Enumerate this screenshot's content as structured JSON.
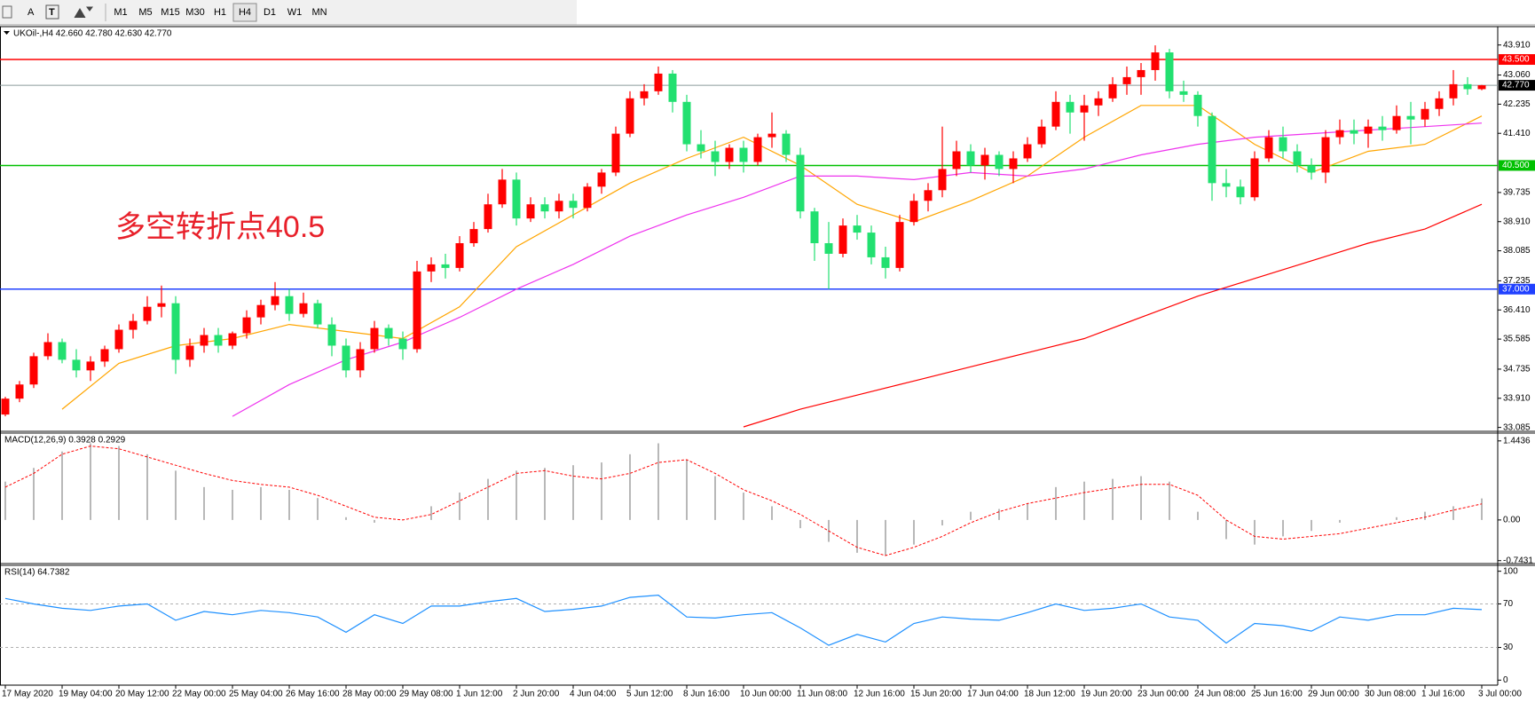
{
  "toolbar": {
    "text_tools": [
      "A"
    ],
    "timeframes": [
      "M1",
      "M5",
      "M15",
      "M30",
      "H1",
      "H4",
      "D1",
      "W1",
      "MN"
    ],
    "active_index": 5
  },
  "chart_data": [
    {
      "type": "candlestick",
      "header": "UKOil-,H4  42.660 42.780 42.630 42.770",
      "annotation": "多空转折点40.5",
      "bull_color": "#ff0000",
      "bear_color": "#22e070",
      "candles": [
        [
          33.45,
          33.95,
          33.4,
          33.9
        ],
        [
          33.9,
          34.4,
          33.8,
          34.3
        ],
        [
          34.3,
          35.2,
          34.2,
          35.1
        ],
        [
          35.1,
          35.75,
          35.0,
          35.5
        ],
        [
          35.5,
          35.6,
          34.9,
          35.0
        ],
        [
          35.0,
          35.3,
          34.5,
          34.7
        ],
        [
          34.7,
          35.1,
          34.4,
          34.95
        ],
        [
          34.95,
          35.4,
          34.8,
          35.3
        ],
        [
          35.3,
          36.0,
          35.2,
          35.85
        ],
        [
          35.85,
          36.3,
          35.6,
          36.1
        ],
        [
          36.1,
          36.8,
          36.0,
          36.5
        ],
        [
          36.5,
          37.1,
          36.2,
          36.6
        ],
        [
          36.6,
          36.8,
          34.6,
          35.0
        ],
        [
          35.0,
          35.6,
          34.8,
          35.4
        ],
        [
          35.4,
          35.9,
          35.2,
          35.7
        ],
        [
          35.7,
          35.9,
          35.2,
          35.4
        ],
        [
          35.4,
          35.8,
          35.3,
          35.75
        ],
        [
          35.75,
          36.4,
          35.6,
          36.2
        ],
        [
          36.2,
          36.7,
          36.0,
          36.55
        ],
        [
          36.55,
          37.2,
          36.4,
          36.8
        ],
        [
          36.8,
          37.0,
          36.1,
          36.3
        ],
        [
          36.3,
          36.9,
          36.2,
          36.6
        ],
        [
          36.6,
          36.7,
          35.9,
          36.0
        ],
        [
          36.0,
          36.2,
          35.1,
          35.4
        ],
        [
          35.4,
          35.6,
          34.5,
          34.7
        ],
        [
          34.7,
          35.5,
          34.5,
          35.3
        ],
        [
          35.3,
          36.1,
          35.2,
          35.9
        ],
        [
          35.9,
          36.0,
          35.4,
          35.6
        ],
        [
          35.6,
          35.8,
          35.0,
          35.3
        ],
        [
          35.3,
          37.8,
          35.2,
          37.5
        ],
        [
          37.5,
          37.9,
          37.2,
          37.7
        ],
        [
          37.7,
          38.0,
          37.3,
          37.6
        ],
        [
          37.6,
          38.5,
          37.5,
          38.3
        ],
        [
          38.3,
          38.9,
          38.2,
          38.7
        ],
        [
          38.7,
          39.7,
          38.6,
          39.4
        ],
        [
          39.4,
          40.4,
          39.3,
          40.1
        ],
        [
          40.1,
          40.3,
          38.8,
          39.0
        ],
        [
          39.0,
          39.6,
          38.9,
          39.4
        ],
        [
          39.4,
          39.6,
          39.0,
          39.2
        ],
        [
          39.2,
          39.7,
          39.0,
          39.5
        ],
        [
          39.5,
          39.7,
          39.0,
          39.3
        ],
        [
          39.3,
          40.0,
          39.2,
          39.9
        ],
        [
          39.9,
          40.4,
          39.7,
          40.3
        ],
        [
          40.3,
          41.6,
          40.2,
          41.4
        ],
        [
          41.4,
          42.6,
          41.3,
          42.4
        ],
        [
          42.4,
          42.8,
          42.2,
          42.6
        ],
        [
          42.6,
          43.3,
          42.5,
          43.1
        ],
        [
          43.1,
          43.2,
          42.0,
          42.3
        ],
        [
          42.3,
          42.5,
          40.9,
          41.1
        ],
        [
          41.1,
          41.5,
          40.7,
          40.9
        ],
        [
          40.9,
          41.2,
          40.2,
          40.6
        ],
        [
          40.6,
          41.1,
          40.4,
          41.0
        ],
        [
          41.0,
          41.2,
          40.3,
          40.6
        ],
        [
          40.6,
          41.4,
          40.5,
          41.3
        ],
        [
          41.3,
          42.0,
          41.0,
          41.4
        ],
        [
          41.4,
          41.5,
          40.6,
          40.8
        ],
        [
          40.8,
          41.0,
          39.0,
          39.2
        ],
        [
          39.2,
          39.3,
          37.8,
          38.3
        ],
        [
          38.3,
          38.9,
          37.0,
          38.0
        ],
        [
          38.0,
          39.0,
          37.9,
          38.8
        ],
        [
          38.8,
          39.1,
          38.4,
          38.6
        ],
        [
          38.6,
          38.8,
          37.7,
          37.9
        ],
        [
          37.9,
          38.2,
          37.3,
          37.6
        ],
        [
          37.6,
          39.1,
          37.5,
          38.9
        ],
        [
          38.9,
          39.7,
          38.8,
          39.5
        ],
        [
          39.5,
          40.0,
          39.2,
          39.8
        ],
        [
          39.8,
          41.6,
          39.6,
          40.4
        ],
        [
          40.4,
          41.2,
          40.2,
          40.9
        ],
        [
          40.9,
          41.1,
          40.3,
          40.5
        ],
        [
          40.5,
          41.0,
          40.1,
          40.8
        ],
        [
          40.8,
          40.9,
          40.2,
          40.4
        ],
        [
          40.4,
          40.9,
          40.0,
          40.7
        ],
        [
          40.7,
          41.3,
          40.6,
          41.1
        ],
        [
          41.1,
          41.8,
          41.0,
          41.6
        ],
        [
          41.6,
          42.6,
          41.5,
          42.3
        ],
        [
          42.3,
          42.5,
          41.4,
          42.0
        ],
        [
          42.0,
          42.5,
          41.2,
          42.2
        ],
        [
          42.2,
          42.6,
          41.9,
          42.4
        ],
        [
          42.4,
          43.0,
          42.3,
          42.8
        ],
        [
          42.8,
          43.3,
          42.5,
          43.0
        ],
        [
          43.0,
          43.4,
          42.5,
          43.2
        ],
        [
          43.2,
          43.9,
          42.9,
          43.7
        ],
        [
          43.7,
          43.8,
          42.4,
          42.6
        ],
        [
          42.6,
          42.9,
          42.3,
          42.5
        ],
        [
          42.5,
          42.6,
          41.6,
          41.9
        ],
        [
          41.9,
          42.0,
          39.5,
          40.0
        ],
        [
          40.0,
          40.4,
          39.6,
          39.9
        ],
        [
          39.9,
          40.1,
          39.4,
          39.6
        ],
        [
          39.6,
          40.9,
          39.5,
          40.7
        ],
        [
          40.7,
          41.5,
          40.6,
          41.3
        ],
        [
          41.3,
          41.6,
          40.7,
          40.9
        ],
        [
          40.9,
          41.1,
          40.3,
          40.5
        ],
        [
          40.5,
          40.7,
          40.1,
          40.3
        ],
        [
          40.3,
          41.5,
          40.0,
          41.3
        ],
        [
          41.3,
          41.8,
          41.1,
          41.5
        ],
        [
          41.5,
          41.8,
          41.1,
          41.4
        ],
        [
          41.4,
          41.8,
          41.0,
          41.6
        ],
        [
          41.6,
          41.9,
          41.2,
          41.5
        ],
        [
          41.5,
          42.2,
          41.4,
          41.9
        ],
        [
          41.9,
          42.3,
          41.1,
          41.8
        ],
        [
          41.8,
          42.3,
          41.6,
          42.1
        ],
        [
          42.1,
          42.6,
          41.9,
          42.4
        ],
        [
          42.4,
          43.2,
          42.2,
          42.8
        ],
        [
          42.8,
          43.0,
          42.5,
          42.66
        ],
        [
          42.66,
          42.78,
          42.63,
          42.77
        ]
      ],
      "ma_x": [
        0,
        4,
        8,
        12,
        16,
        20,
        24,
        28,
        32,
        36,
        40,
        44,
        48,
        52,
        56,
        60,
        64,
        68,
        72,
        76,
        80,
        84,
        88,
        92,
        96,
        100,
        104
      ],
      "series": [
        {
          "color": "#ffa500",
          "values": [
            null,
            33.6,
            34.9,
            35.4,
            35.6,
            36.0,
            35.8,
            35.6,
            36.5,
            38.2,
            39.1,
            40.0,
            40.7,
            41.3,
            40.5,
            39.4,
            38.9,
            39.5,
            40.2,
            41.3,
            42.2,
            42.2,
            41.1,
            40.3,
            40.9,
            41.1,
            41.9
          ]
        },
        {
          "color": "#ee33ee",
          "values": [
            null,
            null,
            null,
            null,
            33.4,
            34.3,
            35.0,
            35.5,
            36.2,
            37.0,
            37.7,
            38.5,
            39.1,
            39.6,
            40.2,
            40.2,
            40.1,
            40.3,
            40.2,
            40.4,
            40.8,
            41.1,
            41.3,
            41.4,
            41.5,
            41.6,
            41.7
          ]
        },
        {
          "color": "#ff0000",
          "values": [
            null,
            null,
            null,
            null,
            null,
            null,
            null,
            null,
            null,
            null,
            null,
            null,
            null,
            33.1,
            33.6,
            34.0,
            34.4,
            34.8,
            35.2,
            35.6,
            36.2,
            36.8,
            37.3,
            37.8,
            38.3,
            38.7,
            39.4
          ]
        }
      ],
      "hlines": [
        {
          "value": 43.5,
          "label": "43.500",
          "color": "#ff0000"
        },
        {
          "value": 40.5,
          "label": "40.500",
          "color": "#00c000"
        },
        {
          "value": 37,
          "label": "37.000",
          "color": "#2040ff"
        }
      ],
      "current": {
        "value": 42.77,
        "label": "42.770",
        "color": "#000000"
      },
      "ylim": [
        33.0,
        44.43
      ],
      "yticks": [
        {
          "value": 43.91,
          "label": "43.910"
        },
        {
          "value": 43.06,
          "label": "43.060"
        },
        {
          "value": 42.235,
          "label": "42.235"
        },
        {
          "value": 41.41,
          "label": "41.410"
        },
        {
          "value": 39.735,
          "label": "39.735"
        },
        {
          "value": 38.91,
          "label": "38.910"
        },
        {
          "value": 38.085,
          "label": "38.085"
        },
        {
          "value": 37.235,
          "label": "37.235"
        },
        {
          "value": 36.41,
          "label": "36.410"
        },
        {
          "value": 35.585,
          "label": "35.585"
        },
        {
          "value": 34.735,
          "label": "34.735"
        },
        {
          "value": 33.91,
          "label": "33.910"
        },
        {
          "value": 33.085,
          "label": "33.085"
        }
      ],
      "xticks": [
        {
          "value": 0,
          "label": "17 May 2020"
        },
        {
          "value": 4,
          "label": "19 May 04:00"
        },
        {
          "value": 8,
          "label": "20 May 12:00"
        },
        {
          "value": 12,
          "label": "22 May 00:00"
        },
        {
          "value": 16,
          "label": "25 May 04:00"
        },
        {
          "value": 20,
          "label": "26 May 16:00"
        },
        {
          "value": 24,
          "label": "28 May 00:00"
        },
        {
          "value": 28,
          "label": "29 May 08:00"
        },
        {
          "value": 32,
          "label": "1 Jun 12:00"
        },
        {
          "value": 36,
          "label": "2 Jun 20:00"
        },
        {
          "value": 40,
          "label": "4 Jun 04:00"
        },
        {
          "value": 44,
          "label": "5 Jun 12:00"
        },
        {
          "value": 48,
          "label": "8 Jun 16:00"
        },
        {
          "value": 52,
          "label": "10 Jun 00:00"
        },
        {
          "value": 56,
          "label": "11 Jun 08:00"
        },
        {
          "value": 60,
          "label": "12 Jun 16:00"
        },
        {
          "value": 64,
          "label": "15 Jun 20:00"
        },
        {
          "value": 68,
          "label": "17 Jun 04:00"
        },
        {
          "value": 72,
          "label": "18 Jun 12:00"
        },
        {
          "value": 76,
          "label": "19 Jun 20:00"
        },
        {
          "value": 80,
          "label": "23 Jun 00:00"
        },
        {
          "value": 84,
          "label": "24 Jun 08:00"
        },
        {
          "value": 88,
          "label": "25 Jun 16:00"
        },
        {
          "value": 92,
          "label": "29 Jun 00:00"
        },
        {
          "value": 96,
          "label": "30 Jun 08:00"
        },
        {
          "value": 100,
          "label": "1 Jul 16:00"
        },
        {
          "value": 104,
          "label": "3 Jul 00:00"
        }
      ]
    },
    {
      "type": "macd",
      "title": "MACD(12,26,9) 0.3928 0.2929",
      "hist_color": "#b8b8b8",
      "signal_color": "#ff0000",
      "x": [
        0,
        2,
        4,
        6,
        8,
        10,
        12,
        14,
        16,
        18,
        20,
        22,
        24,
        26,
        28,
        30,
        32,
        34,
        36,
        38,
        40,
        42,
        44,
        46,
        48,
        50,
        52,
        54,
        56,
        58,
        60,
        62,
        64,
        66,
        68,
        70,
        72,
        74,
        76,
        78,
        80,
        82,
        84,
        86,
        88,
        90,
        92,
        94,
        96,
        98,
        100,
        102,
        104
      ],
      "histogram": [
        0.7,
        0.95,
        1.25,
        1.4,
        1.35,
        1.2,
        0.9,
        0.6,
        0.55,
        0.6,
        0.55,
        0.4,
        0.05,
        -0.05,
        0.0,
        0.25,
        0.5,
        0.75,
        0.9,
        0.95,
        1.0,
        1.05,
        1.2,
        1.4,
        1.1,
        0.8,
        0.5,
        0.25,
        -0.15,
        -0.4,
        -0.6,
        -0.65,
        -0.45,
        -0.1,
        0.15,
        0.2,
        0.3,
        0.6,
        0.7,
        0.75,
        0.8,
        0.7,
        0.15,
        -0.35,
        -0.45,
        -0.3,
        -0.2,
        -0.05,
        0.0,
        0.05,
        0.15,
        0.25,
        0.3928
      ],
      "signal": [
        0.6,
        0.85,
        1.2,
        1.35,
        1.3,
        1.15,
        1.0,
        0.85,
        0.72,
        0.65,
        0.6,
        0.45,
        0.25,
        0.05,
        0.0,
        0.1,
        0.35,
        0.6,
        0.85,
        0.9,
        0.8,
        0.75,
        0.85,
        1.05,
        1.1,
        0.85,
        0.55,
        0.35,
        0.1,
        -0.2,
        -0.5,
        -0.65,
        -0.5,
        -0.3,
        -0.05,
        0.15,
        0.3,
        0.4,
        0.5,
        0.58,
        0.65,
        0.65,
        0.45,
        0.0,
        -0.3,
        -0.35,
        -0.3,
        -0.25,
        -0.15,
        -0.05,
        0.05,
        0.18,
        0.2929
      ],
      "ylim": [
        -0.78,
        1.57
      ],
      "yticks": [
        1.4436,
        {
          "value": 0,
          "label": "0.00"
        },
        -0.7431
      ]
    },
    {
      "type": "rsi",
      "title": "RSI(14) 64.7382",
      "color": "#1e90ff",
      "x": [
        0,
        2,
        4,
        6,
        8,
        10,
        12,
        14,
        16,
        18,
        20,
        22,
        24,
        26,
        28,
        30,
        32,
        34,
        36,
        38,
        40,
        42,
        44,
        46,
        48,
        50,
        52,
        54,
        56,
        58,
        60,
        62,
        64,
        66,
        68,
        70,
        72,
        74,
        76,
        78,
        80,
        82,
        84,
        86,
        88,
        90,
        92,
        94,
        96,
        98,
        100,
        102,
        104
      ],
      "values": [
        75,
        70,
        66,
        64,
        68,
        70,
        55,
        63,
        60,
        64,
        62,
        58,
        44,
        60,
        52,
        68,
        68,
        72,
        75,
        63,
        65,
        68,
        76,
        78,
        58,
        57,
        60,
        62,
        48,
        32,
        42,
        35,
        52,
        58,
        56,
        55,
        62,
        70,
        64,
        66,
        70,
        58,
        55,
        34,
        52,
        50,
        45,
        58,
        55,
        60,
        60,
        66,
        64.7382
      ],
      "levels": [
        30,
        70
      ],
      "ylim": [
        -4.6,
        104.6
      ],
      "yticks": [
        100,
        70,
        30,
        0
      ]
    }
  ]
}
